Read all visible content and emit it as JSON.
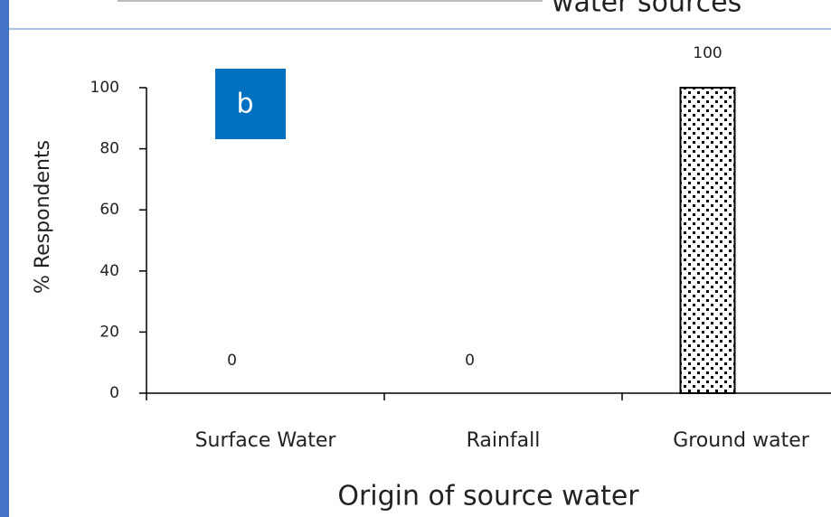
{
  "heading": "water sources",
  "chart_data": {
    "type": "bar",
    "panel_label": "b",
    "x_label": "Origin of source water",
    "y_label": "% Respondents",
    "categories": [
      "Surface Water",
      "Rainfall",
      "Ground water"
    ],
    "values": [
      0,
      0,
      100
    ],
    "color": "#000000",
    "ylim": [
      0,
      100
    ],
    "yticks": [
      0,
      20,
      40,
      60,
      80,
      100
    ],
    "grid": false
  }
}
